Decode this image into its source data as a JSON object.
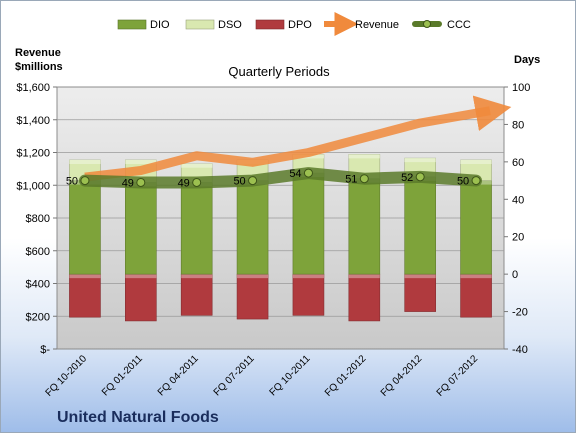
{
  "chart_data": {
    "type": "bar",
    "title": "Quarterly Periods",
    "company": "United Natural Foods",
    "categories": [
      "FQ 10-2010",
      "FQ 01-2011",
      "FQ 04-2011",
      "FQ 07-2011",
      "FQ 10-2011",
      "FQ 01-2012",
      "FQ 04-2012",
      "FQ 07-2012"
    ],
    "left_axis": {
      "label_line1": "Revenue",
      "label_line2": "$millions",
      "ylim": [
        0,
        1600
      ],
      "ticks": [
        "$-",
        "$200",
        "$400",
        "$600",
        "$800",
        "$1,000",
        "$1,200",
        "$1,400",
        "$1,600"
      ]
    },
    "right_axis": {
      "label": "Days",
      "ylim": [
        -40,
        100
      ],
      "ticks": [
        "-40",
        "-20",
        "0",
        "20",
        "40",
        "60",
        "80",
        "100"
      ]
    },
    "series": [
      {
        "name": "DIO",
        "axis": "right",
        "color": "#7ea33a",
        "values": [
          50,
          49,
          49,
          50,
          54,
          51,
          52,
          50
        ]
      },
      {
        "name": "DSO",
        "axis": "right",
        "color": "#d9e8b0",
        "values": [
          11,
          12,
          10,
          11,
          10,
          13,
          10,
          11
        ]
      },
      {
        "name": "DPO",
        "axis": "right",
        "color": "#b03a3e",
        "values": [
          -23,
          -25,
          -22,
          -24,
          -22,
          -25,
          -20,
          -23
        ]
      },
      {
        "name": "Revenue",
        "axis": "left",
        "color": "#f08a3c",
        "values": [
          1050,
          1090,
          1180,
          1140,
          1200,
          1290,
          1380,
          1440
        ]
      },
      {
        "name": "CCC",
        "axis": "right",
        "color": "#5a7a2a",
        "values": [
          50,
          49,
          49,
          50,
          54,
          51,
          52,
          50
        ],
        "labels": [
          "50",
          "49",
          "49",
          "50",
          "54",
          "51",
          "52",
          "50"
        ]
      }
    ],
    "grid": true,
    "legend": "top"
  }
}
